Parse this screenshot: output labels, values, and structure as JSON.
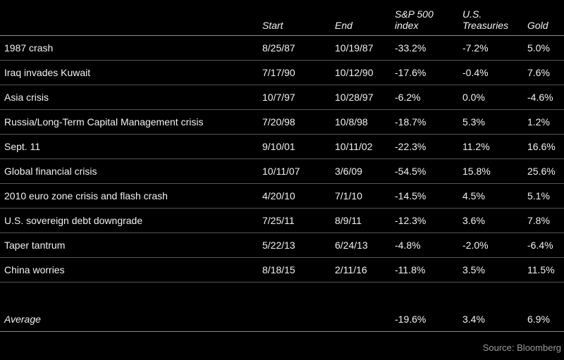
{
  "chart_data": {
    "type": "table",
    "columns": [
      "",
      "Start",
      "End",
      "S&P 500 index",
      "U.S. Treasuries",
      "Gold"
    ],
    "header_lines": {
      "event": {
        "l1": "",
        "l2": ""
      },
      "start": {
        "l1": "",
        "l2": "Start"
      },
      "end": {
        "l1": "",
        "l2": "End"
      },
      "sp500": {
        "l1": "S&P 500",
        "l2": "index"
      },
      "treasuries": {
        "l1": "U.S.",
        "l2": "Treasuries"
      },
      "gold": {
        "l1": "",
        "l2": "Gold"
      }
    },
    "rows": [
      {
        "label": "1987 crash",
        "start": "8/25/87",
        "end": "10/19/87",
        "sp500": "-33.2%",
        "treasuries": "-7.2%",
        "gold": "5.0%"
      },
      {
        "label": "Iraq invades Kuwait",
        "start": "7/17/90",
        "end": "10/12/90",
        "sp500": "-17.6%",
        "treasuries": "-0.4%",
        "gold": "7.6%"
      },
      {
        "label": "Asia crisis",
        "start": "10/7/97",
        "end": "10/28/97",
        "sp500": "-6.2%",
        "treasuries": "0.0%",
        "gold": "-4.6%"
      },
      {
        "label": "Russia/Long-Term Capital Management crisis",
        "start": "7/20/98",
        "end": "10/8/98",
        "sp500": "-18.7%",
        "treasuries": "5.3%",
        "gold": "1.2%"
      },
      {
        "label": "Sept. 11",
        "start": "9/10/01",
        "end": "10/11/02",
        "sp500": "-22.3%",
        "treasuries": "11.2%",
        "gold": "16.6%"
      },
      {
        "label": "Global financial crisis",
        "start": "10/11/07",
        "end": "3/6/09",
        "sp500": "-54.5%",
        "treasuries": "15.8%",
        "gold": "25.6%"
      },
      {
        "label": "2010 euro zone crisis and flash crash",
        "start": "4/20/10",
        "end": "7/1/10",
        "sp500": "-14.5%",
        "treasuries": "4.5%",
        "gold": "5.1%"
      },
      {
        "label": "U.S. sovereign debt downgrade",
        "start": "7/25/11",
        "end": "8/9/11",
        "sp500": "-12.3%",
        "treasuries": "3.6%",
        "gold": "7.8%"
      },
      {
        "label": "Taper tantrum",
        "start": "5/22/13",
        "end": "6/24/13",
        "sp500": "-4.8%",
        "treasuries": "-2.0%",
        "gold": "-6.4%"
      },
      {
        "label": "China worries",
        "start": "8/18/15",
        "end": "2/11/16",
        "sp500": "-11.8%",
        "treasuries": "3.5%",
        "gold": "11.5%"
      }
    ],
    "summary_row": {
      "label": "Average",
      "start": "",
      "end": "",
      "sp500": "-19.6%",
      "treasuries": "3.4%",
      "gold": "6.9%"
    },
    "source": "Source: Bloomberg",
    "layout": {
      "grid": "horizontal-rules-only",
      "background": "#000000"
    }
  },
  "colors": {
    "background": "#000000",
    "text": "#f2f2f2",
    "row_divider": "#555555",
    "strong_divider": "#8a8a8a",
    "source_text": "#9b9b9b"
  }
}
